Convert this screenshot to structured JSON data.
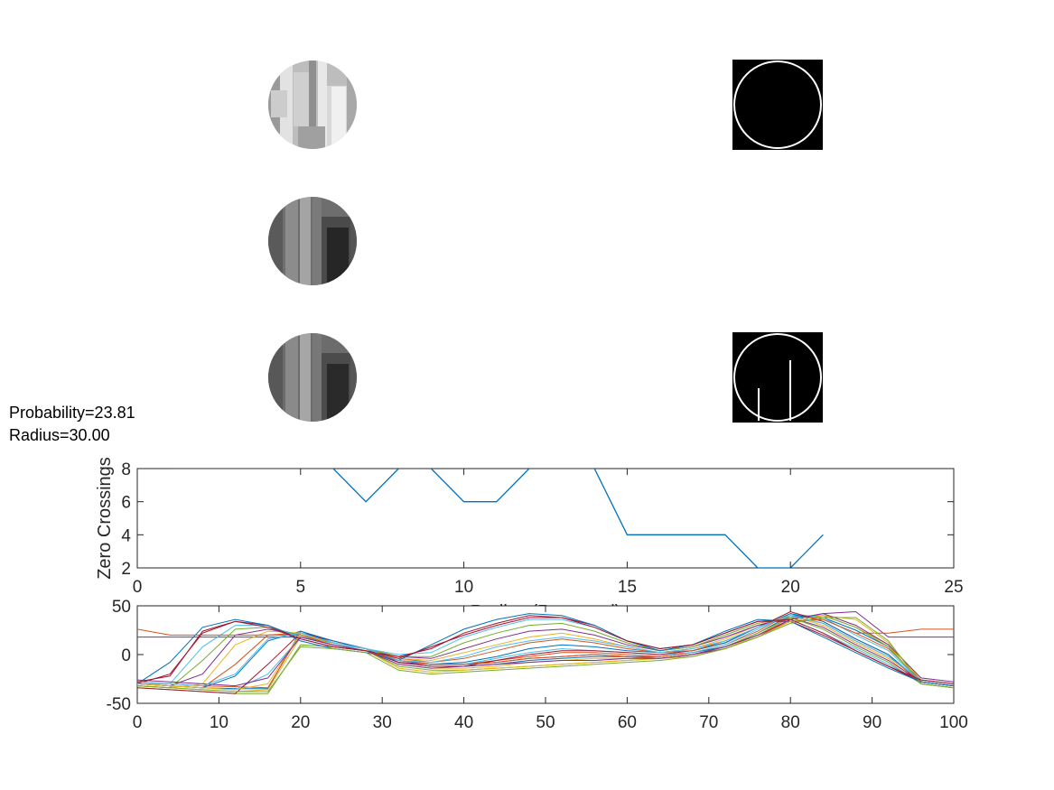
{
  "annotations": {
    "probability": "Probability=23.81",
    "radius": "Radius=30.00"
  },
  "panels": [
    {
      "name": "original-patch",
      "content": "grayscale-circle-light"
    },
    {
      "name": "filtered-patch",
      "content": "grayscale-circle-dark"
    },
    {
      "name": "smoothed-patch",
      "content": "grayscale-circle-dark"
    },
    {
      "name": "mask-circle",
      "content": "binary-circle-outline"
    },
    {
      "name": "edge-mask",
      "content": "binary-circle-with-edges"
    }
  ],
  "chart_data": [
    {
      "type": "line",
      "title": "",
      "xlabel": "Radius (Reversed)",
      "ylabel": "Zero Crossings",
      "xlim": [
        0,
        25
      ],
      "ylim": [
        2,
        8
      ],
      "xticks": [
        0,
        5,
        10,
        15,
        20,
        25
      ],
      "yticks": [
        2,
        4,
        6,
        8
      ],
      "grid": false,
      "series": [
        {
          "color": "#0072BD",
          "x": [
            1,
            2,
            3,
            4,
            5,
            6,
            7,
            8,
            9,
            10,
            11,
            12,
            13,
            14,
            15,
            16,
            17,
            18,
            19,
            20,
            21
          ],
          "y": [
            8,
            8,
            8,
            8,
            8,
            8,
            6,
            8,
            8,
            6,
            6,
            8,
            8,
            8,
            4,
            4,
            4,
            4,
            2,
            2,
            4
          ]
        }
      ]
    },
    {
      "type": "line",
      "title": "",
      "xlabel": "",
      "ylabel": "",
      "xlim": [
        0,
        100
      ],
      "ylim": [
        -50,
        50
      ],
      "xticks": [
        0,
        10,
        20,
        30,
        40,
        50,
        60,
        70,
        80,
        90,
        100
      ],
      "yticks": [
        -50,
        0,
        50
      ],
      "grid": false,
      "series_count": 21,
      "colors": [
        "#0072BD",
        "#D95319",
        "#EDB120",
        "#7E2F8E",
        "#77AC30",
        "#4DBEEE",
        "#A2142F"
      ],
      "x": [
        0,
        4,
        8,
        12,
        16,
        20,
        24,
        28,
        32,
        36,
        40,
        44,
        48,
        52,
        56,
        60,
        64,
        68,
        72,
        76,
        80,
        84,
        88,
        92,
        96,
        100
      ],
      "series": [
        {
          "y": [
            -30,
            -32,
            -34,
            -35,
            -35,
            24,
            12,
            6,
            -8,
            -12,
            -12,
            -10,
            -6,
            -4,
            -2,
            -2,
            -2,
            2,
            8,
            22,
            40,
            38,
            25,
            8,
            -28,
            -32
          ]
        },
        {
          "y": [
            -28,
            -30,
            -32,
            -33,
            -34,
            22,
            12,
            6,
            -6,
            -10,
            -10,
            -6,
            -2,
            2,
            2,
            0,
            -2,
            2,
            10,
            24,
            42,
            36,
            22,
            6,
            -26,
            -30
          ]
        },
        {
          "y": [
            -32,
            -34,
            -36,
            -38,
            -36,
            18,
            10,
            4,
            -10,
            -14,
            -14,
            -12,
            -8,
            -6,
            -4,
            -4,
            -4,
            0,
            6,
            20,
            38,
            40,
            28,
            10,
            -30,
            -34
          ]
        },
        {
          "y": [
            18,
            18,
            18,
            18,
            18,
            18,
            10,
            4,
            -8,
            -10,
            -10,
            -8,
            -4,
            -2,
            0,
            -2,
            -4,
            0,
            6,
            18,
            36,
            42,
            44,
            18,
            18,
            18
          ]
        },
        {
          "y": [
            -34,
            -36,
            -38,
            -40,
            -40,
            10,
            8,
            4,
            -12,
            -16,
            -16,
            -14,
            -12,
            -10,
            -8,
            -6,
            -4,
            0,
            8,
            22,
            38,
            40,
            28,
            8,
            -30,
            -34
          ]
        },
        {
          "y": [
            -30,
            -32,
            -34,
            -36,
            -20,
            18,
            12,
            6,
            -6,
            -10,
            -10,
            -4,
            2,
            6,
            4,
            2,
            0,
            2,
            10,
            26,
            42,
            38,
            20,
            4,
            -28,
            -32
          ]
        },
        {
          "y": [
            -34,
            -36,
            -38,
            -40,
            -10,
            22,
            14,
            6,
            -8,
            -12,
            -12,
            -6,
            0,
            4,
            4,
            2,
            0,
            4,
            12,
            28,
            44,
            34,
            16,
            0,
            -30,
            -34
          ]
        },
        {
          "y": [
            -30,
            -32,
            -34,
            -22,
            14,
            24,
            14,
            6,
            -6,
            -10,
            -8,
            -2,
            6,
            10,
            8,
            4,
            2,
            4,
            12,
            28,
            42,
            34,
            16,
            0,
            -28,
            -32
          ]
        },
        {
          "y": [
            -30,
            -32,
            -34,
            -10,
            20,
            22,
            12,
            6,
            -4,
            -8,
            -4,
            4,
            12,
            16,
            12,
            6,
            2,
            4,
            14,
            28,
            40,
            32,
            14,
            -2,
            -28,
            -32
          ]
        },
        {
          "y": [
            -32,
            -34,
            -30,
            10,
            24,
            22,
            12,
            6,
            -4,
            -6,
            2,
            10,
            18,
            22,
            16,
            8,
            2,
            6,
            16,
            30,
            40,
            30,
            12,
            -4,
            -30,
            -34
          ]
        },
        {
          "y": [
            -30,
            -32,
            -20,
            20,
            26,
            20,
            12,
            6,
            -2,
            -4,
            6,
            16,
            24,
            26,
            20,
            10,
            4,
            8,
            18,
            30,
            38,
            28,
            10,
            -6,
            -28,
            -32
          ]
        },
        {
          "y": [
            -32,
            -34,
            -6,
            26,
            28,
            20,
            12,
            6,
            -2,
            -2,
            12,
            22,
            30,
            32,
            24,
            12,
            4,
            8,
            20,
            32,
            38,
            26,
            8,
            -8,
            -30,
            -34
          ]
        },
        {
          "y": [
            -30,
            -30,
            8,
            30,
            30,
            18,
            10,
            6,
            0,
            2,
            18,
            28,
            36,
            36,
            28,
            14,
            6,
            10,
            22,
            34,
            36,
            22,
            6,
            -10,
            -28,
            -32
          ]
        },
        {
          "y": [
            -30,
            -20,
            22,
            34,
            30,
            16,
            8,
            4,
            -2,
            6,
            22,
            32,
            40,
            38,
            30,
            14,
            6,
            10,
            22,
            34,
            34,
            20,
            4,
            -12,
            -28,
            -32
          ]
        },
        {
          "y": [
            -30,
            -8,
            28,
            36,
            30,
            14,
            6,
            2,
            -6,
            10,
            26,
            36,
            42,
            40,
            30,
            14,
            4,
            10,
            24,
            36,
            34,
            18,
            2,
            -14,
            -28,
            -32
          ]
        },
        {
          "y": [
            26,
            20,
            20,
            20,
            20,
            20,
            10,
            4,
            -6,
            -10,
            -10,
            -8,
            -4,
            -2,
            0,
            -2,
            -4,
            0,
            8,
            20,
            34,
            36,
            22,
            22,
            26,
            26
          ]
        },
        {
          "y": [
            -30,
            -32,
            -34,
            -36,
            -30,
            22,
            10,
            4,
            -14,
            -18,
            -16,
            -14,
            -12,
            -10,
            -8,
            -6,
            -4,
            -2,
            6,
            18,
            34,
            40,
            36,
            12,
            -26,
            -30
          ]
        },
        {
          "y": [
            -26,
            -28,
            -30,
            -32,
            -24,
            18,
            10,
            4,
            -10,
            -14,
            -12,
            -10,
            -8,
            -6,
            -6,
            -4,
            -4,
            0,
            8,
            20,
            36,
            42,
            30,
            10,
            -24,
            -28
          ]
        },
        {
          "y": [
            -32,
            -34,
            -36,
            -38,
            -38,
            8,
            6,
            2,
            -16,
            -20,
            -18,
            -16,
            -14,
            -12,
            -10,
            -8,
            -6,
            -2,
            6,
            18,
            32,
            38,
            38,
            14,
            -30,
            -34
          ]
        },
        {
          "y": [
            -28,
            -30,
            -32,
            -20,
            16,
            22,
            12,
            6,
            -6,
            -8,
            -2,
            8,
            14,
            18,
            14,
            8,
            2,
            6,
            14,
            28,
            40,
            32,
            14,
            -2,
            -26,
            -30
          ]
        },
        {
          "y": [
            -28,
            -22,
            24,
            34,
            28,
            16,
            8,
            4,
            -4,
            8,
            20,
            30,
            38,
            38,
            28,
            14,
            6,
            10,
            22,
            34,
            36,
            22,
            4,
            -12,
            -26,
            -30
          ]
        }
      ]
    }
  ]
}
